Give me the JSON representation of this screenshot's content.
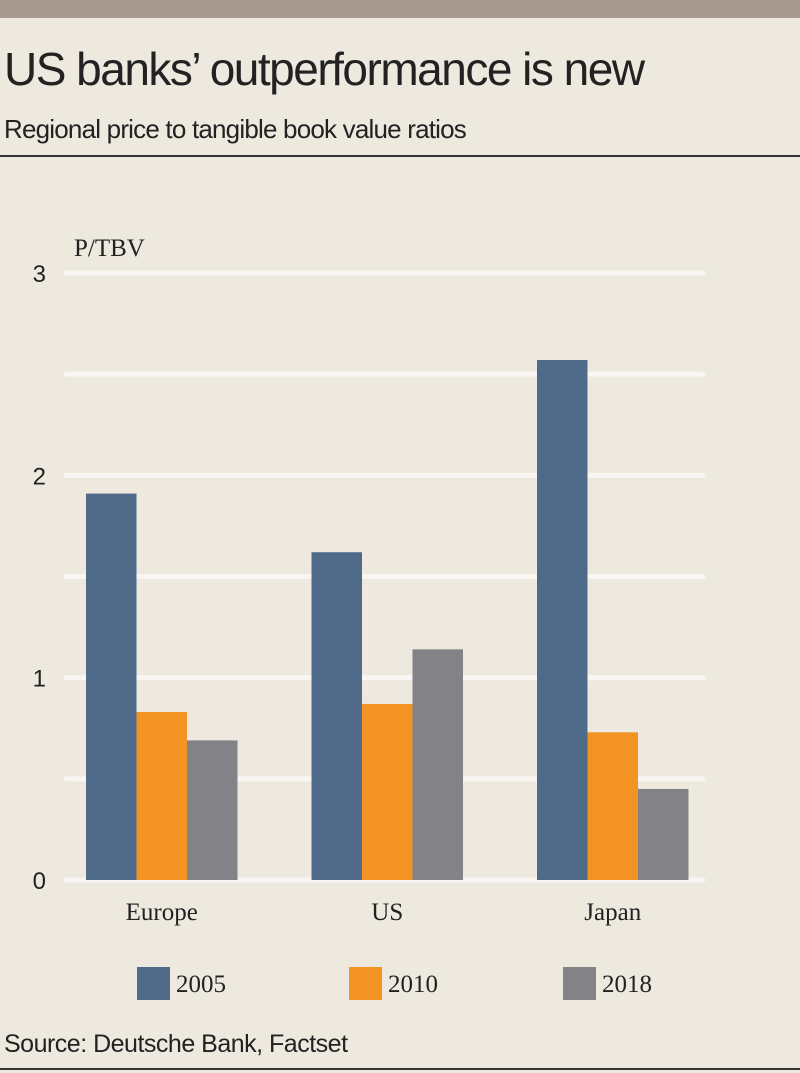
{
  "chart_data": {
    "type": "bar",
    "title": "US banks’ outperformance is new",
    "subtitle": "Regional price to tangible book value ratios",
    "ylabel": "P/TBV",
    "xlabel": "",
    "categories": [
      "Europe",
      "US",
      "Japan"
    ],
    "series": [
      {
        "name": "2005",
        "color": "#506b8a",
        "values": [
          1.91,
          1.62,
          2.57
        ]
      },
      {
        "name": "2010",
        "color": "#f39323",
        "values": [
          0.83,
          0.87,
          0.73
        ]
      },
      {
        "name": "2018",
        "color": "#838387",
        "values": [
          0.69,
          1.14,
          0.45
        ]
      }
    ],
    "ylim": [
      0,
      3
    ],
    "yticks": [
      0,
      1,
      2,
      3
    ],
    "gridlines": [
      0,
      0.5,
      1,
      1.5,
      2,
      2.5,
      3
    ],
    "grid": true,
    "legend": "bottom",
    "source": "Source: Deutsche Bank, Factset"
  }
}
